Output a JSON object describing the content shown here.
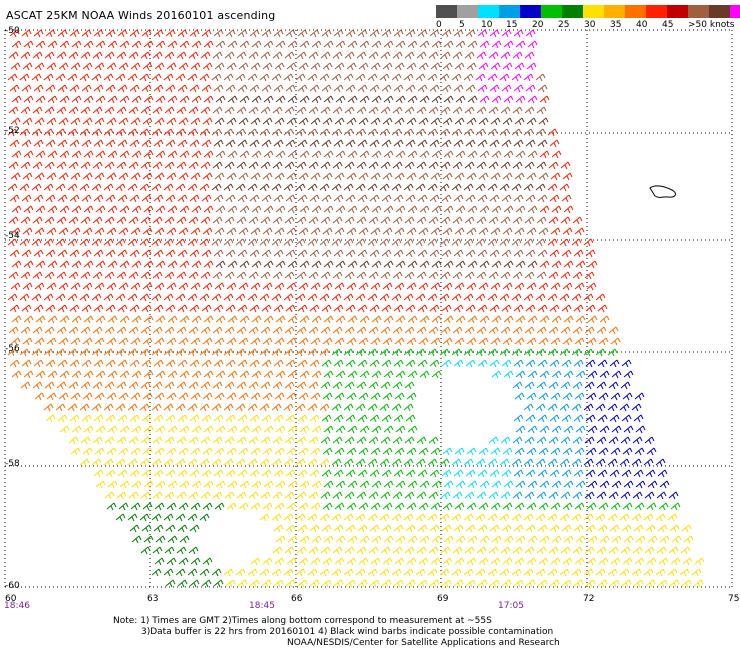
{
  "title": "ASCAT 25KM NOAA Winds 20160101 ascending",
  "legend": {
    "labels": [
      "0",
      "5",
      "10",
      "15",
      "20",
      "25",
      "30",
      "35",
      "40",
      "45",
      ">50 knots"
    ],
    "colors": [
      "#505050",
      "#a0a0a0",
      "#00e0ff",
      "#00a0e8",
      "#0000c8",
      "#00c000",
      "#008000",
      "#ffe000",
      "#ffb000",
      "#ff7000",
      "#ff2000",
      "#c00000",
      "#a06040",
      "#6a3a28",
      "#ff00ff",
      "#a000c0"
    ]
  },
  "map": {
    "lat_labels": [
      "-50",
      "-52",
      "-54",
      "-56",
      "-58",
      "-60"
    ],
    "lon_labels": [
      "60",
      "63",
      "66",
      "69",
      "72",
      "75"
    ],
    "time_labels": [
      "18:46",
      "18:45",
      "17:05"
    ]
  },
  "notes": {
    "line1": "Note: 1) Times are GMT 2)Times along bottom correspond to measurement at ~55S",
    "line2": "3)Data buffer is 22 hrs from 20160101 4) Black wind barbs indicate possible contamination",
    "line3": "NOAA/NESDIS/Center for Satellite Applications and Research"
  }
}
